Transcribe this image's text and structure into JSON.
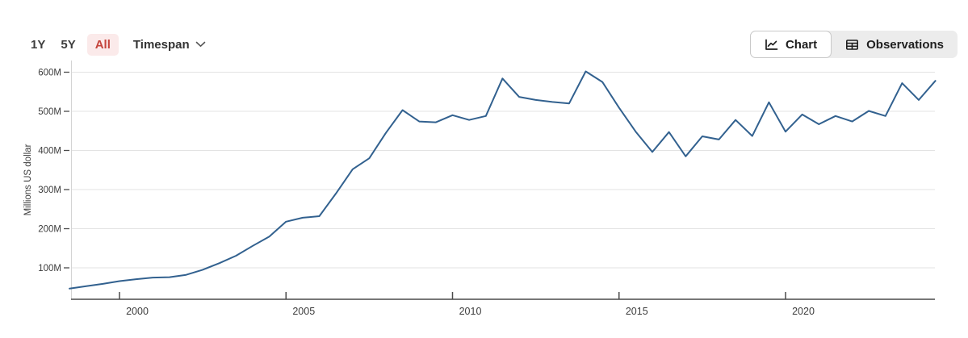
{
  "toolbar": {
    "ranges": [
      {
        "label": "1Y",
        "active": false
      },
      {
        "label": "5Y",
        "active": false
      },
      {
        "label": "All",
        "active": true
      }
    ],
    "timespan_label": "Timespan",
    "view_toggle": {
      "chart_label": "Chart",
      "observations_label": "Observations",
      "selected": "Chart"
    }
  },
  "colors": {
    "line": "#32618f",
    "grid": "#e3e3e3",
    "plot_border": "#d4d4d4",
    "axis": "#4a4a4a",
    "tick_text": "#3c3c3c",
    "active_range_bg": "#fbeaea",
    "active_range_text": "#c5443c",
    "toggle_group_bg": "#ececec",
    "selected_toggle_border": "#c9c9c9"
  },
  "chart_data": {
    "type": "line",
    "title": "",
    "xlabel": "",
    "ylabel": "Millions US dollar",
    "grid": "horizontal",
    "legend": "none",
    "x_range": [
      1998.5,
      2024.5
    ],
    "ylim": [
      25,
      632
    ],
    "x_ticks": [
      "2000",
      "2005",
      "2010",
      "2015",
      "2020"
    ],
    "x_tick_years": [
      2000,
      2005,
      2010,
      2015,
      2020
    ],
    "y_ticks": [
      {
        "label": "100M",
        "value": 100
      },
      {
        "label": "200M",
        "value": 200
      },
      {
        "label": "300M",
        "value": 300
      },
      {
        "label": "400M",
        "value": 400
      },
      {
        "label": "500M",
        "value": 500
      },
      {
        "label": "600M",
        "value": 600
      }
    ],
    "series": [
      {
        "name": "Millions US dollar",
        "x": [
          1998.5,
          1999.0,
          1999.5,
          2000.0,
          2000.5,
          2001.0,
          2001.5,
          2002.0,
          2002.5,
          2003.0,
          2003.5,
          2004.0,
          2004.5,
          2005.0,
          2005.5,
          2006.0,
          2006.5,
          2007.0,
          2007.5,
          2008.0,
          2008.5,
          2009.0,
          2009.5,
          2010.0,
          2010.5,
          2011.0,
          2011.5,
          2012.0,
          2012.5,
          2013.0,
          2013.5,
          2014.0,
          2014.5,
          2015.0,
          2015.5,
          2016.0,
          2016.5,
          2017.0,
          2017.5,
          2018.0,
          2018.5,
          2019.0,
          2019.5,
          2020.0,
          2020.5,
          2021.0,
          2021.5,
          2022.0,
          2022.5,
          2023.0,
          2023.5,
          2024.0,
          2024.5
        ],
        "values": [
          47,
          53,
          59,
          66,
          71,
          75,
          76,
          82,
          95,
          112,
          131,
          156,
          180,
          218,
          228,
          232,
          290,
          352,
          380,
          445,
          503,
          474,
          472,
          490,
          478,
          488,
          584,
          537,
          529,
          524,
          520,
          602,
          575,
          509,
          448,
          396,
          447,
          385,
          436,
          428,
          478,
          437,
          523,
          448,
          492,
          467,
          488,
          474,
          501,
          488,
          572,
          529,
          578
        ]
      }
    ]
  }
}
